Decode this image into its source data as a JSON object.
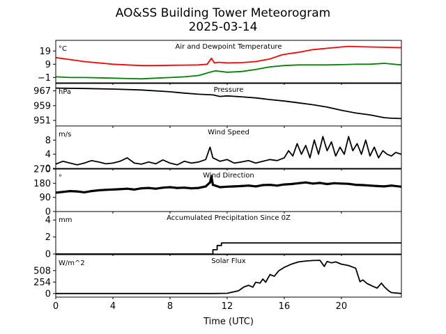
{
  "figure": {
    "title": "AO&SS Building Tower Meteorogram",
    "subtitle": "2025-03-14",
    "xlabel": "Time (UTC)"
  },
  "chart_data": [
    {
      "type": "line",
      "title": "Air and Dewpoint Temperature",
      "unit": "°C",
      "xlim": [
        0,
        24.2
      ],
      "ylim": [
        -5,
        27
      ],
      "yticks": [
        -1,
        9,
        19
      ],
      "grid": false,
      "series": [
        {
          "color": "#ff0000",
          "x": [
            0,
            1,
            2,
            3,
            4,
            5,
            6,
            7,
            8,
            9,
            10,
            10.6,
            10.9,
            11.1,
            11.4,
            12,
            13,
            14,
            15,
            15.8,
            16.3,
            17,
            18,
            19,
            20,
            20.5,
            21,
            22,
            23,
            24.2
          ],
          "y": [
            14,
            12.5,
            11,
            10,
            9,
            8.5,
            8,
            8,
            8.2,
            8.3,
            8.5,
            9,
            13.5,
            10,
            10.5,
            10,
            10.2,
            11,
            13,
            16,
            17,
            18,
            20,
            21,
            22,
            22.5,
            22.3,
            22,
            21.8,
            21.5
          ]
        },
        {
          "color": "#008000",
          "x": [
            0,
            1,
            2,
            3,
            4,
            5,
            6,
            7,
            8,
            9,
            10,
            10.8,
            11.2,
            12,
            13,
            14,
            15,
            16,
            17,
            18,
            19,
            20,
            21,
            22,
            23,
            24.2
          ],
          "y": [
            -0.5,
            -1,
            -1,
            -1.2,
            -1.5,
            -1.8,
            -2,
            -1.5,
            -1,
            -0.5,
            0.5,
            3,
            4,
            3,
            3.5,
            5,
            7,
            8,
            8.5,
            8.5,
            8.5,
            8.7,
            9,
            9,
            9.7,
            8.5
          ]
        }
      ]
    },
    {
      "type": "line",
      "title": "Pressure",
      "unit": "hPa",
      "xlim": [
        0,
        24.2
      ],
      "ylim": [
        948,
        971
      ],
      "yticks": [
        951,
        959,
        967
      ],
      "grid": false,
      "series": [
        {
          "color": "#000000",
          "x": [
            0,
            2,
            4,
            6,
            8,
            9,
            10,
            11,
            11.5,
            12,
            13,
            14,
            15,
            16,
            17,
            18,
            19,
            20,
            21,
            22,
            23,
            23.5,
            24.2
          ],
          "y": [
            968.5,
            968.3,
            968,
            967.5,
            966.5,
            965.8,
            965.2,
            964.8,
            964,
            964.3,
            963.8,
            963.2,
            962.3,
            961.5,
            960.5,
            959.5,
            958.2,
            956.5,
            955,
            954,
            952.5,
            952.2,
            952
          ]
        }
      ]
    },
    {
      "type": "line",
      "title": "Wind Speed",
      "unit": "m/s",
      "xlim": [
        0,
        24.2
      ],
      "ylim": [
        0,
        12
      ],
      "yticks": [
        0,
        4,
        8
      ],
      "grid": false,
      "series": [
        {
          "color": "#000000",
          "x": [
            0,
            0.5,
            1,
            1.5,
            2,
            2.5,
            3,
            3.5,
            4,
            4.5,
            5,
            5.5,
            6,
            6.5,
            7,
            7.5,
            8,
            8.5,
            9,
            9.5,
            10,
            10.5,
            10.8,
            11,
            11.5,
            12,
            12.5,
            13,
            13.5,
            14,
            14.5,
            15,
            15.5,
            16,
            16.3,
            16.6,
            16.9,
            17.2,
            17.5,
            17.8,
            18.1,
            18.4,
            18.7,
            19,
            19.3,
            19.6,
            19.9,
            20.2,
            20.5,
            20.8,
            21.1,
            21.4,
            21.7,
            22,
            22.3,
            22.6,
            22.9,
            23.2,
            23.5,
            23.8,
            24.2
          ],
          "y": [
            1.2,
            2,
            1.5,
            1,
            1.5,
            2.2,
            1.8,
            1.3,
            1.5,
            2,
            3,
            1.5,
            1.2,
            1.8,
            1.3,
            2.4,
            1.5,
            1,
            2,
            1.5,
            1.8,
            2.5,
            6,
            3,
            2,
            2.5,
            1.5,
            1.8,
            2.2,
            1.5,
            2,
            2.5,
            2.2,
            3,
            5,
            3.5,
            7,
            4,
            6.5,
            3,
            8,
            4,
            9,
            5,
            7.5,
            3.5,
            6,
            4,
            9,
            5,
            7,
            4,
            8,
            3.5,
            6,
            3,
            5,
            4,
            3.5,
            4.5,
            4
          ]
        }
      ]
    },
    {
      "type": "scatter",
      "title": "Wind Direction",
      "unit": "°",
      "xlim": [
        0,
        24.2
      ],
      "ylim": [
        0,
        270
      ],
      "yticks": [
        0,
        90,
        180,
        270
      ],
      "grid": false,
      "series": [
        {
          "color": "#000000",
          "x": [
            0,
            0.5,
            1,
            1.5,
            2,
            2.5,
            3,
            3.5,
            4,
            4.5,
            5,
            5.5,
            6,
            6.5,
            7,
            7.5,
            8,
            8.5,
            9,
            9.5,
            10,
            10.5,
            10.8,
            10.9,
            11,
            11.5,
            12,
            12.5,
            13,
            13.5,
            14,
            14.5,
            15,
            15.5,
            16,
            16.5,
            17,
            17.5,
            18,
            18.5,
            19,
            19.5,
            20,
            20.5,
            21,
            21.5,
            22,
            22.5,
            23,
            23.5,
            24.2
          ],
          "y": [
            120,
            125,
            130,
            128,
            122,
            130,
            135,
            138,
            140,
            142,
            145,
            140,
            148,
            150,
            145,
            152,
            155,
            150,
            152,
            148,
            150,
            160,
            185,
            225,
            170,
            155,
            158,
            160,
            162,
            165,
            160,
            168,
            170,
            165,
            172,
            175,
            180,
            185,
            178,
            182,
            175,
            180,
            178,
            176,
            170,
            168,
            165,
            162,
            160,
            165,
            158
          ]
        }
      ]
    },
    {
      "type": "line",
      "title": "Accumulated Precipitation Since 0Z",
      "unit": "mm",
      "xlim": [
        0,
        24.2
      ],
      "ylim": [
        0,
        5
      ],
      "yticks": [
        0,
        2,
        4
      ],
      "grid": false,
      "series": [
        {
          "color": "#000000",
          "x": [
            0,
            11.0,
            11.0,
            11.3,
            11.3,
            11.6,
            11.6,
            24.2
          ],
          "y": [
            0,
            0,
            0.5,
            0.5,
            1,
            1,
            1.3,
            1.3
          ]
        }
      ]
    },
    {
      "type": "line",
      "title": "Solar Flux",
      "unit": "W/m^2",
      "xlim": [
        0,
        24.2
      ],
      "ylim": [
        -80,
        860
      ],
      "yticks": [
        0,
        254,
        508
      ],
      "grid": false,
      "series": [
        {
          "color": "#000000",
          "x": [
            0,
            6,
            11,
            12,
            12.8,
            13.2,
            13.5,
            13.8,
            14,
            14.3,
            14.5,
            14.7,
            15,
            15.3,
            15.6,
            16,
            16.5,
            17,
            17.5,
            18,
            18.5,
            18.8,
            19,
            19.3,
            19.6,
            20,
            20.5,
            21,
            21.3,
            21.5,
            21.8,
            22.2,
            22.5,
            22.8,
            23,
            23.3,
            23.5,
            24.2
          ],
          "y": [
            0,
            0,
            0,
            5,
            60,
            150,
            180,
            140,
            250,
            230,
            320,
            250,
            420,
            380,
            500,
            580,
            650,
            700,
            720,
            730,
            735,
            600,
            710,
            680,
            700,
            650,
            620,
            560,
            260,
            300,
            220,
            160,
            120,
            230,
            150,
            60,
            20,
            0
          ]
        }
      ]
    }
  ],
  "shared_x": {
    "ticks": [
      0,
      4,
      8,
      12,
      16,
      20
    ],
    "xlim": [
      0,
      24.2
    ]
  }
}
